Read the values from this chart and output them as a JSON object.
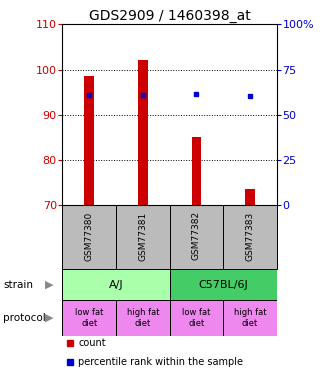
{
  "title": "GDS2909 / 1460398_at",
  "samples": [
    "GSM77380",
    "GSM77381",
    "GSM77382",
    "GSM77383"
  ],
  "bar_values": [
    98.5,
    102.0,
    85.0,
    73.5
  ],
  "bar_bottom": 70,
  "blue_dot_values": [
    94.3,
    94.3,
    94.5,
    94.2
  ],
  "ylim": [
    70,
    110
  ],
  "yticks_left": [
    70,
    80,
    90,
    100,
    110
  ],
  "yticks_right": [
    0,
    25,
    50,
    75,
    100
  ],
  "ytick_labels_right": [
    "0",
    "25",
    "50",
    "75",
    "100%"
  ],
  "bar_color": "#cc0000",
  "blue_dot_color": "#0000cc",
  "strain_labels": [
    "A/J",
    "C57BL/6J"
  ],
  "strain_color_aj": "#aaffaa",
  "strain_color_c57": "#44cc66",
  "protocol_labels": [
    "low fat\ndiet",
    "high fat\ndiet",
    "low fat\ndiet",
    "high fat\ndiet"
  ],
  "protocol_color": "#ee88ee",
  "legend_count_color": "#cc0000",
  "legend_pct_color": "#0000cc",
  "left_axis_color": "#cc0000",
  "right_axis_color": "#0000cc",
  "sample_box_color": "#bbbbbb",
  "title_fontsize": 10,
  "tick_fontsize": 8,
  "bar_width": 0.18
}
